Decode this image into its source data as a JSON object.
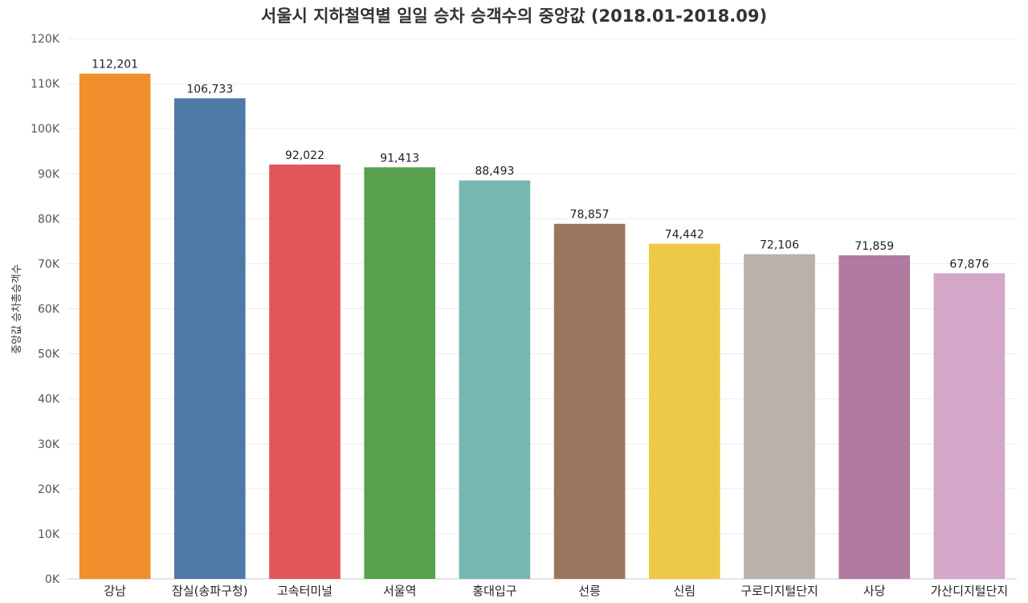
{
  "chart_data": {
    "type": "bar",
    "title": "서울시 지하철역별 일일 승차 승객수의 중앙값 (2018.01-2018.09)",
    "xlabel": "",
    "ylabel": "중앙값 승차총승객수",
    "ylim": [
      0,
      120000
    ],
    "yticks": [
      0,
      10000,
      20000,
      30000,
      40000,
      50000,
      60000,
      70000,
      80000,
      90000,
      100000,
      110000,
      120000
    ],
    "ytick_labels": [
      "0K",
      "10K",
      "20K",
      "30K",
      "40K",
      "50K",
      "60K",
      "70K",
      "80K",
      "90K",
      "100K",
      "110K",
      "120K"
    ],
    "grid": true,
    "legend": "none",
    "categories": [
      "강남",
      "잠실(송파구청)",
      "고속터미널",
      "서울역",
      "홍대입구",
      "선릉",
      "신림",
      "구로디지털단지",
      "사당",
      "가산디지털단지"
    ],
    "values": [
      112201,
      106733,
      92022,
      91413,
      88493,
      78857,
      74442,
      72106,
      71859,
      67876
    ],
    "value_labels": [
      "112,201",
      "106,733",
      "92,022",
      "91,413",
      "88,493",
      "78,857",
      "74,442",
      "72,106",
      "71,859",
      "67,876"
    ],
    "colors": [
      "#f28e2b",
      "#4e79a7",
      "#e15759",
      "#59a14f",
      "#76b7b2",
      "#9c755f",
      "#edc948",
      "#bab0ac",
      "#b07aa1",
      "#d4a6c8"
    ]
  }
}
